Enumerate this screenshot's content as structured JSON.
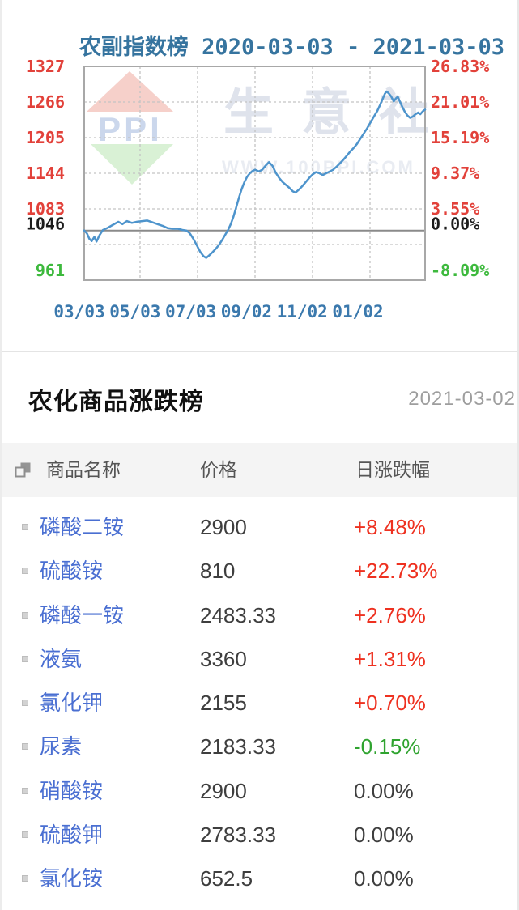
{
  "chart_card": {
    "title": "农副指数榜 2020-03-03 - 2021-03-03",
    "watermark": {
      "logo_text": "PPI",
      "brand": "生意社",
      "url": "WWW.100PPI.COM"
    }
  },
  "chart_data": {
    "type": "line",
    "title": "农副指数榜 2020-03-03 - 2021-03-03",
    "x_labels": [
      "03/03",
      "05/03",
      "07/03",
      "09/02",
      "11/02",
      "01/02"
    ],
    "xlabel": "",
    "ylabel": "",
    "ylim": [
      961,
      1327
    ],
    "baseline_value": 1046,
    "h_grid_values": [
      1266,
      1205,
      1144,
      1083,
      1022
    ],
    "grid_on": true,
    "legend_position": "none",
    "y_axis": [
      {
        "v": 1327,
        "left": "1327",
        "right": "26.83%",
        "color": "red"
      },
      {
        "v": 1266,
        "left": "1266",
        "right": "21.01%",
        "color": "red"
      },
      {
        "v": 1205,
        "left": "1205",
        "right": "15.19%",
        "color": "red"
      },
      {
        "v": 1144,
        "left": "1144",
        "right": "9.37%",
        "color": "red"
      },
      {
        "v": 1083,
        "left": "1083",
        "right": "3.55%",
        "color": "red"
      },
      {
        "v": 1046,
        "left": "1046",
        "right": "0.00%",
        "color": "dark"
      },
      {
        "v": 961,
        "left": "961",
        "right": "-8.09%",
        "color": "green"
      }
    ],
    "palette": {
      "red": "#e2413a",
      "dark": "#1c1c1c",
      "green": "#3db93d",
      "axis_date": "#3b79ad",
      "line": "#4e94cc",
      "grid": "#c3c3c3",
      "border": "#a8a8a8",
      "baseline": "#8a8a8a"
    },
    "series_name": "农副指数",
    "points": [
      [
        0.0,
        1046
      ],
      [
        0.008,
        1041
      ],
      [
        0.015,
        1032
      ],
      [
        0.022,
        1028
      ],
      [
        0.03,
        1035
      ],
      [
        0.036,
        1027
      ],
      [
        0.045,
        1038
      ],
      [
        0.055,
        1047
      ],
      [
        0.07,
        1051
      ],
      [
        0.085,
        1056
      ],
      [
        0.1,
        1061
      ],
      [
        0.112,
        1057
      ],
      [
        0.125,
        1062
      ],
      [
        0.14,
        1059
      ],
      [
        0.155,
        1061
      ],
      [
        0.17,
        1062
      ],
      [
        0.185,
        1063
      ],
      [
        0.2,
        1060
      ],
      [
        0.215,
        1057
      ],
      [
        0.23,
        1054
      ],
      [
        0.245,
        1050
      ],
      [
        0.26,
        1049
      ],
      [
        0.275,
        1049
      ],
      [
        0.288,
        1047
      ],
      [
        0.3,
        1046
      ],
      [
        0.31,
        1041
      ],
      [
        0.32,
        1032
      ],
      [
        0.33,
        1021
      ],
      [
        0.34,
        1010
      ],
      [
        0.35,
        1002
      ],
      [
        0.358,
        999
      ],
      [
        0.366,
        1003
      ],
      [
        0.375,
        1008
      ],
      [
        0.385,
        1014
      ],
      [
        0.395,
        1021
      ],
      [
        0.405,
        1030
      ],
      [
        0.415,
        1040
      ],
      [
        0.422,
        1047
      ],
      [
        0.43,
        1057
      ],
      [
        0.438,
        1070
      ],
      [
        0.446,
        1086
      ],
      [
        0.454,
        1102
      ],
      [
        0.462,
        1117
      ],
      [
        0.47,
        1129
      ],
      [
        0.478,
        1138
      ],
      [
        0.486,
        1144
      ],
      [
        0.494,
        1148
      ],
      [
        0.502,
        1150
      ],
      [
        0.512,
        1147
      ],
      [
        0.522,
        1150
      ],
      [
        0.532,
        1157
      ],
      [
        0.542,
        1163
      ],
      [
        0.552,
        1157
      ],
      [
        0.562,
        1145
      ],
      [
        0.572,
        1136
      ],
      [
        0.582,
        1129
      ],
      [
        0.592,
        1124
      ],
      [
        0.602,
        1119
      ],
      [
        0.612,
        1113
      ],
      [
        0.62,
        1111
      ],
      [
        0.63,
        1116
      ],
      [
        0.64,
        1122
      ],
      [
        0.65,
        1129
      ],
      [
        0.66,
        1136
      ],
      [
        0.67,
        1142
      ],
      [
        0.68,
        1146
      ],
      [
        0.69,
        1144
      ],
      [
        0.7,
        1141
      ],
      [
        0.71,
        1144
      ],
      [
        0.72,
        1147
      ],
      [
        0.73,
        1150
      ],
      [
        0.74,
        1155
      ],
      [
        0.75,
        1161
      ],
      [
        0.76,
        1167
      ],
      [
        0.77,
        1174
      ],
      [
        0.78,
        1181
      ],
      [
        0.79,
        1187
      ],
      [
        0.8,
        1194
      ],
      [
        0.81,
        1203
      ],
      [
        0.82,
        1212
      ],
      [
        0.83,
        1221
      ],
      [
        0.84,
        1231
      ],
      [
        0.85,
        1241
      ],
      [
        0.86,
        1251
      ],
      [
        0.868,
        1261
      ],
      [
        0.876,
        1272
      ],
      [
        0.882,
        1280
      ],
      [
        0.887,
        1284
      ],
      [
        0.893,
        1281
      ],
      [
        0.9,
        1276
      ],
      [
        0.908,
        1267
      ],
      [
        0.914,
        1272
      ],
      [
        0.92,
        1275
      ],
      [
        0.926,
        1267
      ],
      [
        0.933,
        1258
      ],
      [
        0.94,
        1250
      ],
      [
        0.948,
        1243
      ],
      [
        0.956,
        1239
      ],
      [
        0.964,
        1241
      ],
      [
        0.972,
        1245
      ],
      [
        0.98,
        1248
      ],
      [
        0.986,
        1245
      ],
      [
        0.993,
        1250
      ],
      [
        1.0,
        1253
      ]
    ]
  },
  "ranking": {
    "title": "农化商品涨跌榜",
    "date": "2021-03-02",
    "columns": {
      "name": "商品名称",
      "price": "价格",
      "change": "日涨跌幅"
    },
    "colors": {
      "link": "#4a6fd2",
      "up": "#ee3120",
      "down": "#2fa32f",
      "flat": "#3e3e3e"
    },
    "rows": [
      {
        "name": "磷酸二铵",
        "price": "2900",
        "change": "+8.48%",
        "dir": "up"
      },
      {
        "name": "硫酸铵",
        "price": "810",
        "change": "+22.73%",
        "dir": "up"
      },
      {
        "name": "磷酸一铵",
        "price": "2483.33",
        "change": "+2.76%",
        "dir": "up"
      },
      {
        "name": "液氨",
        "price": "3360",
        "change": "+1.31%",
        "dir": "up"
      },
      {
        "name": "氯化钾",
        "price": "2155",
        "change": "+0.70%",
        "dir": "up"
      },
      {
        "name": "尿素",
        "price": "2183.33",
        "change": "-0.15%",
        "dir": "down"
      },
      {
        "name": "硝酸铵",
        "price": "2900",
        "change": "0.00%",
        "dir": "flat"
      },
      {
        "name": "硫酸钾",
        "price": "2783.33",
        "change": "0.00%",
        "dir": "flat"
      },
      {
        "name": "氯化铵",
        "price": "652.5",
        "change": "0.00%",
        "dir": "flat"
      }
    ]
  }
}
